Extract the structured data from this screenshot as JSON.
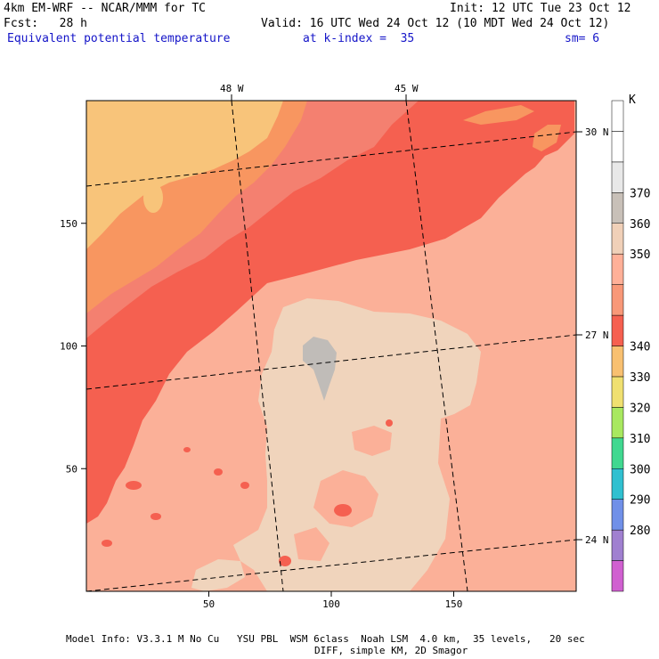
{
  "header": {
    "model": "4km EM-WRF -- NCAR/MMM for TC",
    "init": "Init: 12 UTC Tue 23 Oct 12",
    "fcst": "Fcst:   28 h",
    "valid": "Valid: 16 UTC Wed 24 Oct 12 (10 MDT Wed 24 Oct 12)",
    "field": "Equivalent potential temperature",
    "level": "at k-index =  35",
    "smoothing": "sm= 6"
  },
  "footer": {
    "line1": "Model Info: V3.3.1 M No Cu   YSU PBL  WSM 6class  Noah LSM  4.0 km,  35 levels,   20 sec",
    "line2": "DIFF, simple KM, 2D Smagor"
  },
  "chart_data": {
    "type": "heatmap",
    "field": "Equivalent potential temperature",
    "units": "K",
    "xlim": [
      0,
      200
    ],
    "ylim": [
      0,
      200
    ],
    "x_ticks": [
      {
        "value": 50,
        "label": "50"
      },
      {
        "value": 100,
        "label": "100"
      },
      {
        "value": 150,
        "label": "150"
      }
    ],
    "y_ticks": [
      {
        "value": 50,
        "label": "50"
      },
      {
        "value": 100,
        "label": "100"
      },
      {
        "value": 150,
        "label": "150"
      }
    ],
    "latitude_labels": [
      "30 N",
      "27 N",
      "24 N"
    ],
    "longitude_labels": [
      "48 W",
      "45 W"
    ],
    "colorbar": {
      "units_label": "K",
      "levels": [
        {
          "label": "",
          "color": "#d060d0"
        },
        {
          "label": "280",
          "color": "#a080d0"
        },
        {
          "label": "290",
          "color": "#7090e8"
        },
        {
          "label": "300",
          "color": "#30c0d0"
        },
        {
          "label": "310",
          "color": "#40d890"
        },
        {
          "label": "320",
          "color": "#a8e860"
        },
        {
          "label": "330",
          "color": "#f0e070"
        },
        {
          "label": "340",
          "color": "#f8c070"
        },
        {
          "label": "",
          "color": "#f56050"
        },
        {
          "label": "",
          "color": "#f89878"
        },
        {
          "label": "350",
          "color": "#ffb098"
        },
        {
          "label": "360",
          "color": "#f0d0b8"
        },
        {
          "label": "370",
          "color": "#c8c0b8"
        },
        {
          "label": "",
          "color": "#e8e8e8"
        },
        {
          "label": "",
          "color": "#ffffff"
        },
        {
          "label": "",
          "color": "#ffffff"
        }
      ]
    },
    "fill_colors": {
      "very_warm_core": "#c0bcb8",
      "warm_core": "#f0d4bc",
      "band_350": "#fbb098",
      "band_340": "#f56050",
      "band_338": "#f48070",
      "band_335": "#f89660",
      "band_330": "#f8c47a"
    }
  }
}
